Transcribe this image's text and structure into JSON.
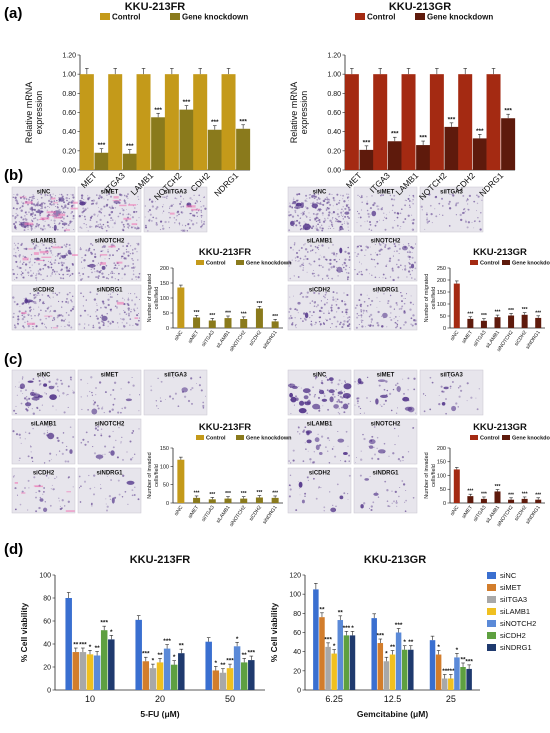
{
  "panels": {
    "a": "(a)",
    "b": "(b)",
    "c": "(c)",
    "d": "(d)"
  },
  "sig": "***",
  "sig1": "*",
  "sig2": "**",
  "micro_labels": {
    "row1": [
      "siNC",
      "siMET",
      "siITGA3"
    ],
    "row2": [
      "siLAMB1",
      "siNOTCH2"
    ],
    "row3": [
      "siCDH2",
      "siNDRG1"
    ]
  },
  "chart_data": [
    {
      "id": "a1",
      "type": "bar",
      "title": "KKU-213FR",
      "ylabel": "Relative mRNA expression",
      "ylim": [
        0,
        1.2
      ],
      "yticks": [
        "0.00",
        "0.20",
        "0.40",
        "0.60",
        "0.80",
        "1.00",
        "1.20"
      ],
      "categories": [
        "MET",
        "ITGA3",
        "LAMB1",
        "NOTCH2",
        "CDH2",
        "NDRG1"
      ],
      "series": [
        {
          "name": "Control",
          "color": "#c49a1a",
          "values": [
            1,
            1,
            1,
            1,
            1,
            1
          ]
        },
        {
          "name": "Gene knockdown",
          "color": "#8a7a1c",
          "values": [
            0.18,
            0.17,
            0.55,
            0.63,
            0.42,
            0.43
          ]
        }
      ]
    },
    {
      "id": "a2",
      "type": "bar",
      "title": "KKU-213GR",
      "ylabel": "Relative mRNA expression",
      "ylim": [
        0,
        1.2
      ],
      "yticks": [
        "0.00",
        "0.20",
        "0.40",
        "0.60",
        "0.80",
        "1.00",
        "1.20"
      ],
      "categories": [
        "MET",
        "ITGA3",
        "LAMB1",
        "NOTCH2",
        "CDH2",
        "NDRG1"
      ],
      "series": [
        {
          "name": "Control",
          "color": "#a42a12",
          "values": [
            1,
            1,
            1,
            1,
            1,
            1
          ]
        },
        {
          "name": "Gene knockdown",
          "color": "#5e1a0c",
          "values": [
            0.21,
            0.3,
            0.26,
            0.45,
            0.33,
            0.54
          ]
        }
      ]
    },
    {
      "id": "b1",
      "type": "bar",
      "title": "KKU-213FR",
      "ylabel": "Number of migrated cells/field",
      "ylim": [
        0,
        200
      ],
      "yticks": [
        "0",
        "50",
        "100",
        "150",
        "200"
      ],
      "categories": [
        "siNC",
        "siMET",
        "siITGA3",
        "siLAMB1",
        "siNOTCH2",
        "siCDH2",
        "siNDRG1"
      ],
      "series": [
        {
          "name": "Control",
          "color": "#c49a1a",
          "values": [
            135,
            null,
            null,
            null,
            null,
            null,
            null
          ]
        },
        {
          "name": "Gene knockdown",
          "color": "#8a7a1c",
          "values": [
            null,
            35,
            25,
            33,
            30,
            65,
            22
          ]
        }
      ]
    },
    {
      "id": "b2",
      "type": "bar",
      "title": "KKU-213GR",
      "ylabel": "Number of migrated cells/field",
      "ylim": [
        0,
        250
      ],
      "yticks": [
        "0",
        "50",
        "100",
        "150",
        "200",
        "250"
      ],
      "categories": [
        "siNC",
        "siMET",
        "siITGA3",
        "siLAMB1",
        "siNOTCH2",
        "siCDH2",
        "siNDRG1"
      ],
      "series": [
        {
          "name": "Control",
          "color": "#a42a12",
          "values": [
            185,
            null,
            null,
            null,
            null,
            null,
            null
          ]
        },
        {
          "name": "Gene knockdown",
          "color": "#5e1a0c",
          "values": [
            null,
            38,
            30,
            45,
            52,
            55,
            42
          ]
        }
      ]
    },
    {
      "id": "c1",
      "type": "bar",
      "title": "KKU-213FR",
      "ylabel": "Number of invaded cells/field",
      "ylim": [
        0,
        150
      ],
      "yticks": [
        "0",
        "50",
        "100",
        "150"
      ],
      "categories": [
        "siNC",
        "siMET",
        "siITGA3",
        "siLAMB1",
        "siNOTCH2",
        "siCDH2",
        "siNDRG1"
      ],
      "series": [
        {
          "name": "Control",
          "color": "#c49a1a",
          "values": [
            118,
            null,
            null,
            null,
            null,
            null,
            null
          ]
        },
        {
          "name": "Gene knockdown",
          "color": "#8a7a1c",
          "values": [
            null,
            14,
            10,
            12,
            12,
            15,
            14
          ]
        }
      ]
    },
    {
      "id": "c2",
      "type": "bar",
      "title": "KKU-213GR",
      "ylabel": "Number of invaded cells/field",
      "ylim": [
        0,
        200
      ],
      "yticks": [
        "0",
        "50",
        "100",
        "150",
        "200"
      ],
      "categories": [
        "siNC",
        "siMET",
        "siITGA3",
        "siLAMB1",
        "siNOTCH2",
        "siCDH2",
        "siNDRG1"
      ],
      "series": [
        {
          "name": "Control",
          "color": "#a42a12",
          "values": [
            122,
            null,
            null,
            null,
            null,
            null,
            null
          ]
        },
        {
          "name": "Gene knockdown",
          "color": "#5e1a0c",
          "values": [
            null,
            25,
            15,
            42,
            12,
            15,
            12
          ]
        }
      ]
    },
    {
      "id": "d1",
      "type": "bar",
      "title": "KKU-213FR",
      "ylabel": "% Cell viability",
      "xlabel": "5-FU (μM)",
      "ylim": [
        0,
        100
      ],
      "yticks": [
        "0",
        "20",
        "40",
        "60",
        "80",
        "100"
      ],
      "categories": [
        "10",
        "20",
        "50"
      ],
      "series": [
        {
          "name": "siNC",
          "color": "#3a6fd0",
          "values": [
            80,
            61,
            42
          ]
        },
        {
          "name": "siMET",
          "color": "#d27d2c",
          "values": [
            33,
            25,
            17
          ]
        },
        {
          "name": "siITGA3",
          "color": "#a8a8a8",
          "values": [
            33,
            19,
            15
          ]
        },
        {
          "name": "siLAMB1",
          "color": "#f0c020",
          "values": [
            31,
            24,
            19
          ]
        },
        {
          "name": "siNOTCH2",
          "color": "#5b8ad8",
          "values": [
            30,
            36,
            38
          ]
        },
        {
          "name": "siCDH2",
          "color": "#5ea040",
          "values": [
            52,
            22,
            24
          ]
        },
        {
          "name": "siNDRG1",
          "color": "#1f3a6e",
          "values": [
            44,
            32,
            26
          ]
        }
      ]
    },
    {
      "id": "d2",
      "type": "bar",
      "title": "KKU-213GR",
      "ylabel": "% Cell viability",
      "xlabel": "Gemcitabine (μM)",
      "ylim": [
        0,
        120
      ],
      "yticks": [
        "0",
        "20",
        "40",
        "60",
        "80",
        "100",
        "120"
      ],
      "categories": [
        "6.25",
        "12.5",
        "25"
      ],
      "series": [
        {
          "name": "siNC",
          "color": "#3a6fd0",
          "values": [
            105,
            75,
            52
          ]
        },
        {
          "name": "siMET",
          "color": "#d27d2c",
          "values": [
            76,
            49,
            37
          ]
        },
        {
          "name": "siITGA3",
          "color": "#a8a8a8",
          "values": [
            45,
            30,
            12
          ]
        },
        {
          "name": "siLAMB1",
          "color": "#f0c020",
          "values": [
            38,
            37,
            12
          ]
        },
        {
          "name": "siNOTCH2",
          "color": "#5b8ad8",
          "values": [
            73,
            60,
            34
          ]
        },
        {
          "name": "siCDH2",
          "color": "#5ea040",
          "values": [
            57,
            42,
            24
          ]
        },
        {
          "name": "siNDRG1",
          "color": "#1f3a6e",
          "values": [
            57,
            42,
            22
          ]
        }
      ]
    }
  ]
}
